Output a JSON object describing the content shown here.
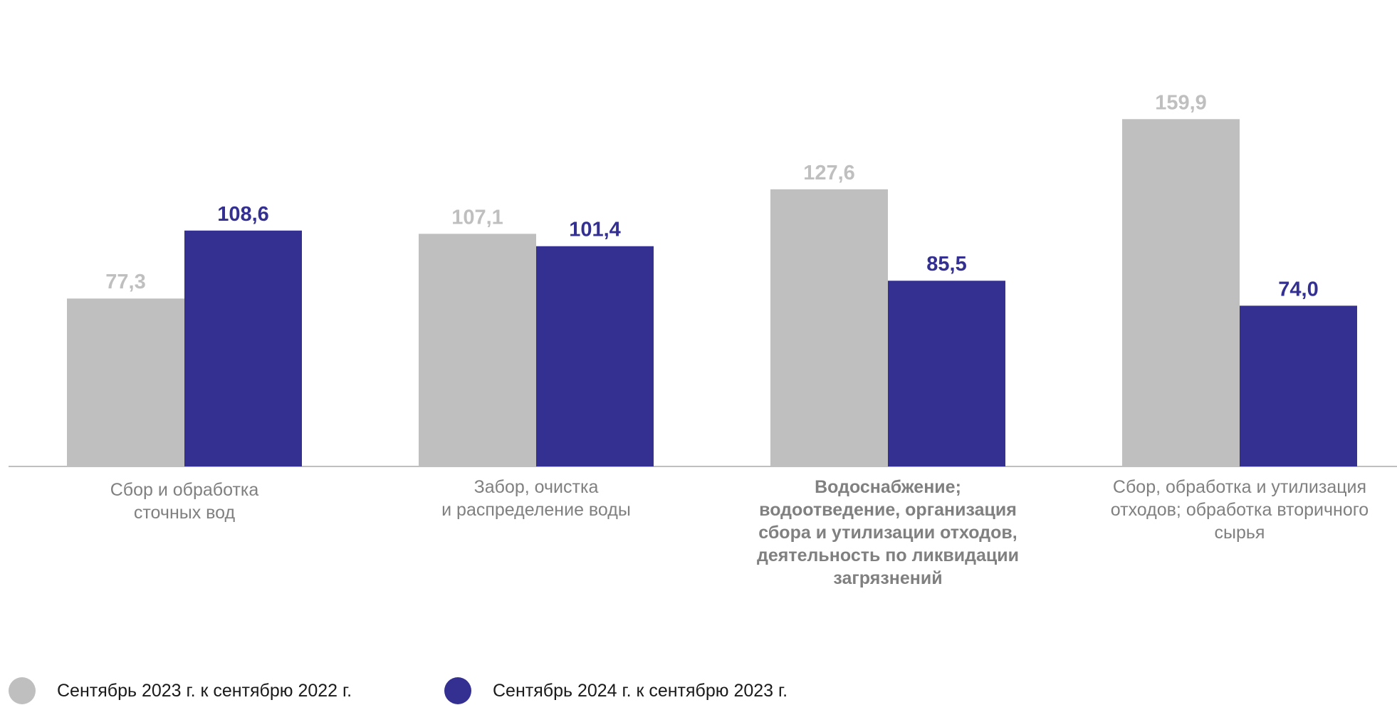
{
  "chart_data": {
    "type": "bar",
    "categories": [
      "Сбор и обработка\nсточных вод",
      "Забор, очистка\nи распределение воды",
      "Водоснабжение;\nводоотведение, организация\nсбора и утилизации отходов,\nдеятельность по ликвидации\nзагрязнений",
      "Сбор, обработка и утилизация\nотходов; обработка вторичного\nсырья"
    ],
    "bold_categories": [
      false,
      false,
      true,
      false
    ],
    "series": [
      {
        "name": "Сентябрь 2023 г. к  сентябрю 2022 г.",
        "color": "#bfbfbf",
        "values": [
          77.3,
          107.1,
          127.6,
          159.9
        ],
        "labels": [
          "77,3",
          "107,1",
          "127,6",
          "159,9"
        ]
      },
      {
        "name": "Сентябрь 2024 г. к  сентябрю 2023 г.",
        "color": "#343091",
        "values": [
          108.6,
          101.4,
          85.5,
          74.0
        ],
        "labels": [
          "108,6",
          "101,4",
          "85,5",
          "74,0"
        ]
      }
    ],
    "title": "",
    "xlabel": "",
    "ylabel": "",
    "ylim": [
      0,
      160
    ],
    "grid": false,
    "legend_position": "bottom-left",
    "label_colors": [
      "#bfbfbf",
      "#343091"
    ],
    "axis_color": "#bfbfbf"
  }
}
